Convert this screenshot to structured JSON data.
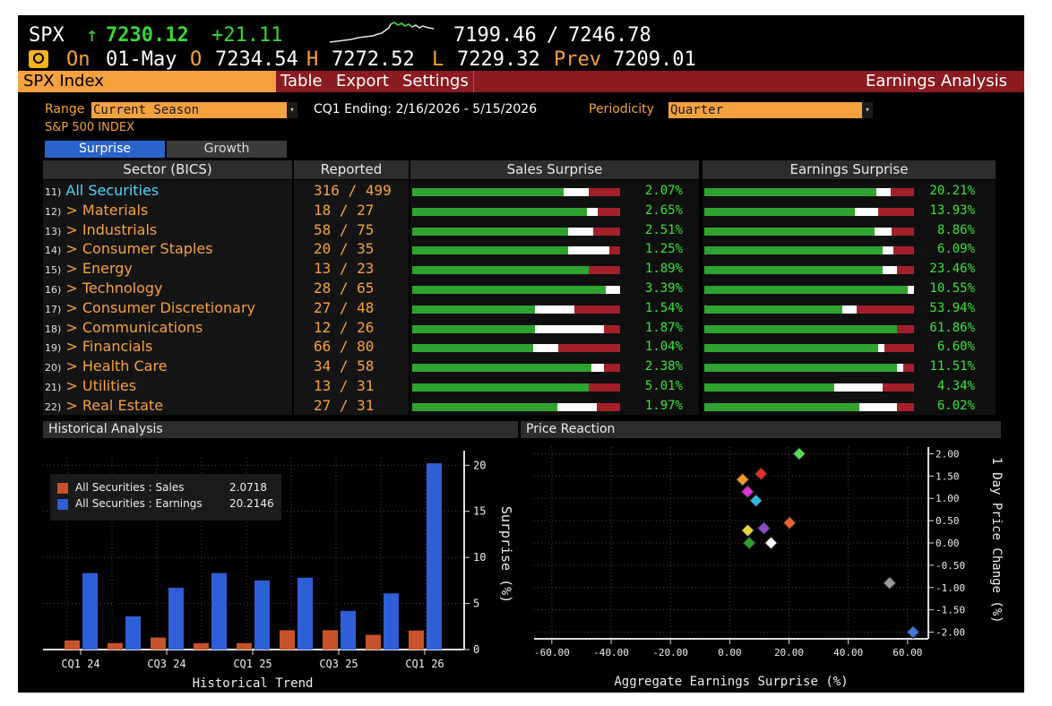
{
  "ticker": {
    "symbol": "SPX",
    "arrow": "↑",
    "last": "7230.12",
    "change": "+21.11",
    "low": "7199.46",
    "sep": "/",
    "high": "7246.78"
  },
  "quote": {
    "icon": "clock-icon",
    "on_label": "On",
    "date": "01-May",
    "o_label": "O",
    "open": "7234.54",
    "h_label": "H",
    "hi": "7272.52",
    "l_label": "L",
    "lo": "7229.32",
    "prev_label": "Prev",
    "prev": "7209.01"
  },
  "toolbar": {
    "security": "SPX Index",
    "table": "Table",
    "export": "Export",
    "settings": "Settings",
    "function_name": "Earnings Analysis"
  },
  "filters": {
    "range_label": "Range",
    "range_value": "Current Season",
    "period_text": "CQ1 Ending: 2/16/2026 - 5/15/2026",
    "periodicity_label": "Periodicity",
    "periodicity_value": "Quarter"
  },
  "index_name": "S&P 500 INDEX",
  "tabs": [
    {
      "label": "Surprise",
      "active": true
    },
    {
      "label": "Growth",
      "active": false
    }
  ],
  "table": {
    "headers": {
      "sector": "Sector (BICS)",
      "reported": "Reported",
      "sales": "Sales Surprise",
      "earnings": "Earnings Surprise"
    },
    "rows": [
      {
        "num": "11)",
        "name": "All Securities",
        "reported": "316",
        "total": "499",
        "sales": "2.07%",
        "earnings": "20.21%",
        "sales_bar": [
          0.73,
          0.12
        ],
        "earn_bar": [
          0.82,
          0.07
        ]
      },
      {
        "num": "12)",
        "name": "> Materials",
        "reported": "18",
        "total": "27",
        "sales": "2.65%",
        "earnings": "13.93%",
        "sales_bar": [
          0.84,
          0.05
        ],
        "earn_bar": [
          0.72,
          0.11
        ]
      },
      {
        "num": "13)",
        "name": "> Industrials",
        "reported": "58",
        "total": "75",
        "sales": "2.51%",
        "earnings": "8.86%",
        "sales_bar": [
          0.75,
          0.12
        ],
        "earn_bar": [
          0.81,
          0.08
        ]
      },
      {
        "num": "14)",
        "name": "> Consumer Staples",
        "reported": "20",
        "total": "35",
        "sales": "1.25%",
        "earnings": "6.09%",
        "sales_bar": [
          0.75,
          0.2
        ],
        "earn_bar": [
          0.85,
          0.05
        ]
      },
      {
        "num": "15)",
        "name": "> Energy",
        "reported": "13",
        "total": "23",
        "sales": "1.89%",
        "earnings": "23.46%",
        "sales_bar": [
          0.85,
          0.0
        ],
        "earn_bar": [
          0.85,
          0.07
        ]
      },
      {
        "num": "16)",
        "name": "> Technology",
        "reported": "28",
        "total": "65",
        "sales": "3.39%",
        "earnings": "10.55%",
        "sales_bar": [
          0.93,
          0.07
        ],
        "earn_bar": [
          0.97,
          0.03
        ]
      },
      {
        "num": "17)",
        "name": "> Consumer Discretionary",
        "reported": "27",
        "total": "48",
        "sales": "1.54%",
        "earnings": "53.94%",
        "sales_bar": [
          0.59,
          0.19
        ],
        "earn_bar": [
          0.66,
          0.07
        ]
      },
      {
        "num": "18)",
        "name": "> Communications",
        "reported": "12",
        "total": "26",
        "sales": "1.87%",
        "earnings": "61.86%",
        "sales_bar": [
          0.59,
          0.33
        ],
        "earn_bar": [
          0.92,
          0.0
        ]
      },
      {
        "num": "19)",
        "name": "> Financials",
        "reported": "66",
        "total": "80",
        "sales": "1.04%",
        "earnings": "6.60%",
        "sales_bar": [
          0.58,
          0.12
        ],
        "earn_bar": [
          0.83,
          0.03
        ]
      },
      {
        "num": "20)",
        "name": "> Health Care",
        "reported": "34",
        "total": "58",
        "sales": "2.38%",
        "earnings": "11.51%",
        "sales_bar": [
          0.86,
          0.06
        ],
        "earn_bar": [
          0.92,
          0.03
        ]
      },
      {
        "num": "21)",
        "name": "> Utilities",
        "reported": "13",
        "total": "31",
        "sales": "5.01%",
        "earnings": "4.34%",
        "sales_bar": [
          0.85,
          0.0
        ],
        "earn_bar": [
          0.62,
          0.23
        ]
      },
      {
        "num": "22)",
        "name": "> Real Estate",
        "reported": "27",
        "total": "31",
        "sales": "1.97%",
        "earnings": "6.02%",
        "sales_bar": [
          0.7,
          0.19
        ],
        "earn_bar": [
          0.74,
          0.18
        ]
      }
    ]
  },
  "historical": {
    "title": "Historical Analysis",
    "legend": [
      {
        "label": "All Securities : Sales",
        "value": "2.0718",
        "color": "#c6532a"
      },
      {
        "label": "All Securities : Earnings",
        "value": "20.2146",
        "color": "#2f5fd6"
      }
    ],
    "xlabel": "Historical Trend",
    "ylabel": "Surprise (%)"
  },
  "reaction": {
    "title": "Price Reaction",
    "xlabel": "Aggregate Earnings Surprise (%)",
    "ylabel": "1 Day Price Change (%)"
  },
  "colors": {
    "orange": "#f4a13f",
    "red": "#8b1a21",
    "green": "#2ca02c",
    "sales_color": "#c6532a",
    "earn_color": "#2f5fd6"
  },
  "chart_data": [
    {
      "type": "bar",
      "categories": [
        "CQ1 24",
        "CQ2 24",
        "CQ3 24",
        "CQ4 24",
        "CQ1 25",
        "CQ2 25",
        "CQ3 25",
        "CQ4 25",
        "CQ1 26"
      ],
      "tick_labels": [
        "CQ1 24",
        "CQ3 24",
        "CQ1 25",
        "CQ3 25",
        "CQ1 26"
      ],
      "series": [
        {
          "name": "All Securities : Sales",
          "values": [
            1.0,
            0.7,
            1.3,
            0.7,
            0.7,
            2.1,
            2.1,
            1.6,
            2.07
          ]
        },
        {
          "name": "All Securities : Earnings",
          "values": [
            8.3,
            3.6,
            6.7,
            8.3,
            7.5,
            7.8,
            4.2,
            6.1,
            20.21
          ]
        }
      ],
      "ylim": [
        0,
        21
      ],
      "yticks": [
        "0",
        "5",
        "10",
        "15",
        "20"
      ],
      "xlabel": "Historical Trend",
      "ylabel": "Surprise (%)"
    },
    {
      "type": "scatter",
      "xlabel": "Aggregate Earnings Surprise (%)",
      "ylabel": "1 Day Price Change (%)",
      "xlim": [
        -66,
        67
      ],
      "ylim": [
        -2.15,
        2.15
      ],
      "xticks": [
        "-60.00",
        "-40.00",
        "-20.00",
        "0.00",
        "20.00",
        "40.00",
        "60.00"
      ],
      "yticks": [
        "2.00",
        "1.50",
        "1.00",
        "0.50",
        "0.00",
        "-0.50",
        "-1.00",
        "-1.50",
        "-2.00"
      ],
      "points": [
        {
          "x": 23.46,
          "y": 2.0,
          "color": "#55dd55"
        },
        {
          "x": 10.55,
          "y": 1.55,
          "color": "#e0302b"
        },
        {
          "x": 4.34,
          "y": 1.42,
          "color": "#f59a23"
        },
        {
          "x": 6.02,
          "y": 1.15,
          "color": "#dd33dd"
        },
        {
          "x": 8.86,
          "y": 0.95,
          "color": "#33bbdd"
        },
        {
          "x": 20.21,
          "y": 0.45,
          "color": "#e8642b"
        },
        {
          "x": 11.51,
          "y": 0.33,
          "color": "#8a4bc9"
        },
        {
          "x": 6.09,
          "y": 0.28,
          "color": "#e6d43a"
        },
        {
          "x": 13.93,
          "y": 0.0,
          "color": "#ffffff"
        },
        {
          "x": 6.6,
          "y": 0.0,
          "color": "#2ca02c"
        },
        {
          "x": 53.94,
          "y": -0.9,
          "color": "#9a9a9a"
        },
        {
          "x": 61.86,
          "y": -2.0,
          "color": "#3d7ad8"
        }
      ]
    }
  ]
}
